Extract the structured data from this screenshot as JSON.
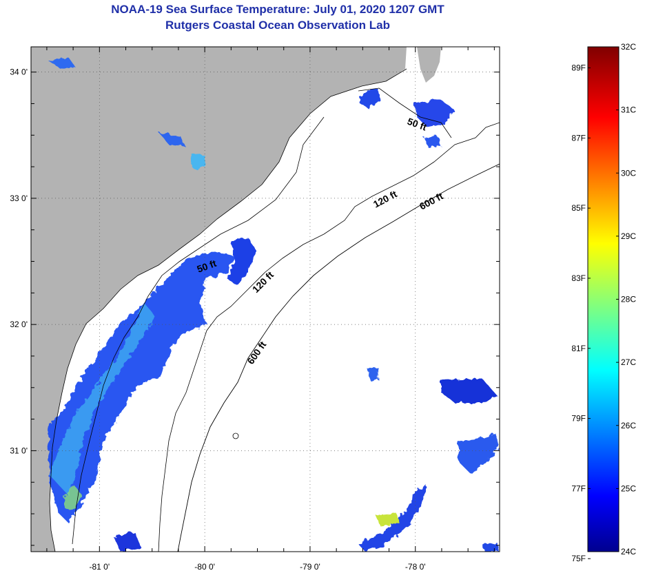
{
  "title_line1": "NOAA-19 Sea Surface Temperature:  July 01, 2020 1207 GMT",
  "title_line2": "Rutgers Coastal Ocean Observation Lab",
  "map": {
    "lon_range": [
      -81.65,
      -77.2
    ],
    "lat_range": [
      30.2,
      34.2
    ],
    "lon_ticks": [
      {
        "value": -81,
        "label": "-81 0'"
      },
      {
        "value": -80,
        "label": "-80 0'"
      },
      {
        "value": -79,
        "label": "-79 0'"
      },
      {
        "value": -78,
        "label": "-78 0'"
      }
    ],
    "lat_ticks": [
      {
        "value": 34,
        "label": "34 0'"
      },
      {
        "value": 33,
        "label": "33 0'"
      },
      {
        "value": 32,
        "label": "32 0'"
      },
      {
        "value": 31,
        "label": "31 0'"
      }
    ],
    "land_color": "#b3b3b3",
    "gridlines": "dotted",
    "contours": [
      {
        "label": "50 ft"
      },
      {
        "label": "120 ft"
      },
      {
        "label": "600 ft"
      }
    ],
    "contour_labels": [
      "50 ft",
      "50 ft",
      "120 ft",
      "120 ft",
      "600 ft",
      "600 ft"
    ]
  },
  "colorbar": {
    "celsius_labels": [
      "32C",
      "31C",
      "30C",
      "29C",
      "28C",
      "27C",
      "26C",
      "25C",
      "24C"
    ],
    "fahrenheit_labels": [
      "89F",
      "87F",
      "85F",
      "83F",
      "81F",
      "79F",
      "77F",
      "75F"
    ],
    "celsius_range": [
      24,
      32
    ],
    "colormap": "jet"
  }
}
